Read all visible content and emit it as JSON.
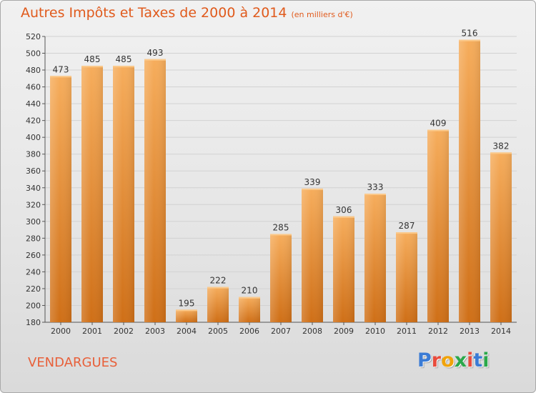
{
  "header": {
    "title": "Autres Impôts et Taxes de 2000 à 2014",
    "unit": "(en milliers d'€)"
  },
  "footer": {
    "town": "VENDARGUES",
    "logo_text": "Proxiti",
    "logo_colors": [
      "#3a7bd5",
      "#e94c3d",
      "#f0a30a",
      "#2aa84a",
      "#e94c3d",
      "#3a7bd5",
      "#2aa84a"
    ]
  },
  "colors": {
    "bar_light": "#f6ad5c",
    "bar_dark": "#cf6f17",
    "title": "#e05a1c",
    "grid": "#d2d2d2"
  },
  "chart_data": {
    "type": "bar",
    "title": "Autres Impôts et Taxes de 2000 à 2014",
    "subtitle": "(en milliers d'€)",
    "categories": [
      "2000",
      "2001",
      "2002",
      "2003",
      "2004",
      "2005",
      "2006",
      "2007",
      "2008",
      "2009",
      "2010",
      "2011",
      "2012",
      "2013",
      "2014"
    ],
    "values": [
      473,
      485,
      485,
      493,
      195,
      222,
      210,
      285,
      339,
      306,
      333,
      287,
      409,
      516,
      382
    ],
    "ylim": [
      180,
      520
    ],
    "yticks": [
      180,
      200,
      220,
      240,
      260,
      280,
      300,
      320,
      340,
      360,
      380,
      400,
      420,
      440,
      460,
      480,
      500,
      520
    ],
    "grid": true,
    "data_labels": true
  }
}
